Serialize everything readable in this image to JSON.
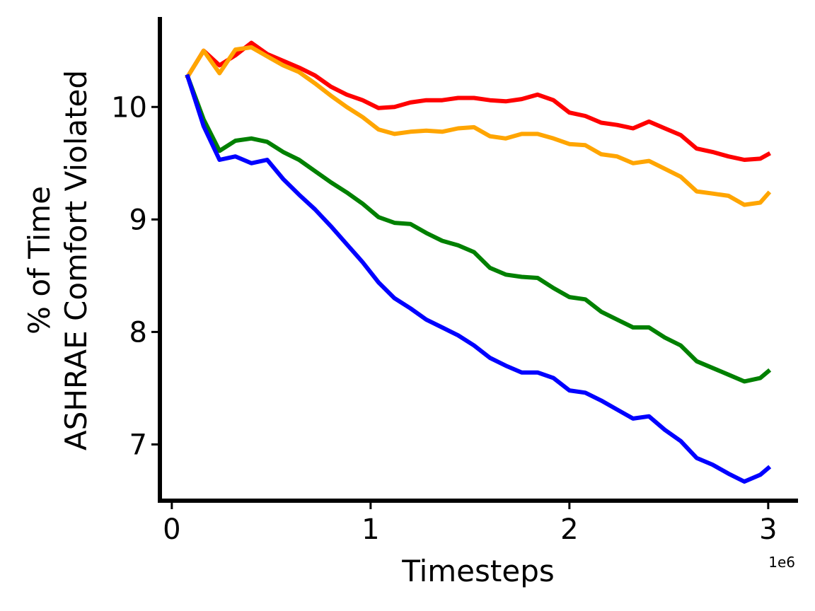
{
  "chart_data": {
    "type": "line",
    "xlabel": "Timesteps",
    "ylabel_line1": "% of Time",
    "ylabel_line2": "ASHRAE Comfort Violated",
    "x_offset_label": "1e6",
    "xlim": [
      -0.06,
      3.15
    ],
    "ylim": [
      6.5,
      10.8
    ],
    "xticks": [
      0,
      1,
      2,
      3
    ],
    "xtick_labels": [
      "0",
      "1",
      "2",
      "3"
    ],
    "yticks": [
      7,
      8,
      9,
      10
    ],
    "ytick_labels": [
      "7",
      "8",
      "9",
      "10"
    ],
    "grid": false,
    "legend": "none",
    "x": [
      0.08,
      0.16,
      0.24,
      0.32,
      0.4,
      0.48,
      0.56,
      0.64,
      0.72,
      0.8,
      0.88,
      0.96,
      1.04,
      1.12,
      1.2,
      1.28,
      1.36,
      1.44,
      1.52,
      1.6,
      1.68,
      1.76,
      1.84,
      1.92,
      2.0,
      2.08,
      2.16,
      2.24,
      2.32,
      2.4,
      2.48,
      2.56,
      2.64,
      2.72,
      2.8,
      2.88,
      2.96,
      3.0
    ],
    "series": [
      {
        "color": "#ff0000",
        "values": [
          10.27,
          10.5,
          10.37,
          10.46,
          10.57,
          10.47,
          10.41,
          10.35,
          10.28,
          10.18,
          10.11,
          10.06,
          9.99,
          10.0,
          10.04,
          10.06,
          10.06,
          10.08,
          10.08,
          10.06,
          10.05,
          10.07,
          10.11,
          10.06,
          9.95,
          9.92,
          9.86,
          9.84,
          9.81,
          9.87,
          9.81,
          9.75,
          9.63,
          9.6,
          9.56,
          9.53,
          9.54,
          9.58
        ]
      },
      {
        "color": "#ffa500",
        "values": [
          10.27,
          10.5,
          10.3,
          10.51,
          10.53,
          10.45,
          10.37,
          10.31,
          10.21,
          10.1,
          10.0,
          9.91,
          9.8,
          9.76,
          9.78,
          9.79,
          9.78,
          9.81,
          9.82,
          9.74,
          9.72,
          9.76,
          9.76,
          9.72,
          9.67,
          9.66,
          9.58,
          9.56,
          9.5,
          9.52,
          9.45,
          9.38,
          9.25,
          9.23,
          9.21,
          9.13,
          9.15,
          9.23
        ]
      },
      {
        "color": "#008000",
        "values": [
          10.27,
          9.89,
          9.61,
          9.7,
          9.72,
          9.69,
          9.6,
          9.53,
          9.43,
          9.33,
          9.24,
          9.14,
          9.02,
          8.97,
          8.96,
          8.88,
          8.81,
          8.77,
          8.71,
          8.57,
          8.51,
          8.49,
          8.48,
          8.39,
          8.31,
          8.29,
          8.18,
          8.11,
          8.04,
          8.04,
          7.95,
          7.88,
          7.74,
          7.68,
          7.62,
          7.56,
          7.59,
          7.65
        ]
      },
      {
        "color": "#0000ff",
        "values": [
          10.27,
          9.83,
          9.53,
          9.56,
          9.5,
          9.53,
          9.36,
          9.22,
          9.09,
          8.94,
          8.78,
          8.62,
          8.44,
          8.3,
          8.21,
          8.11,
          8.04,
          7.97,
          7.88,
          7.77,
          7.7,
          7.64,
          7.64,
          7.59,
          7.48,
          7.46,
          7.39,
          7.31,
          7.23,
          7.25,
          7.13,
          7.03,
          6.88,
          6.82,
          6.74,
          6.67,
          6.73,
          6.79
        ]
      }
    ]
  }
}
